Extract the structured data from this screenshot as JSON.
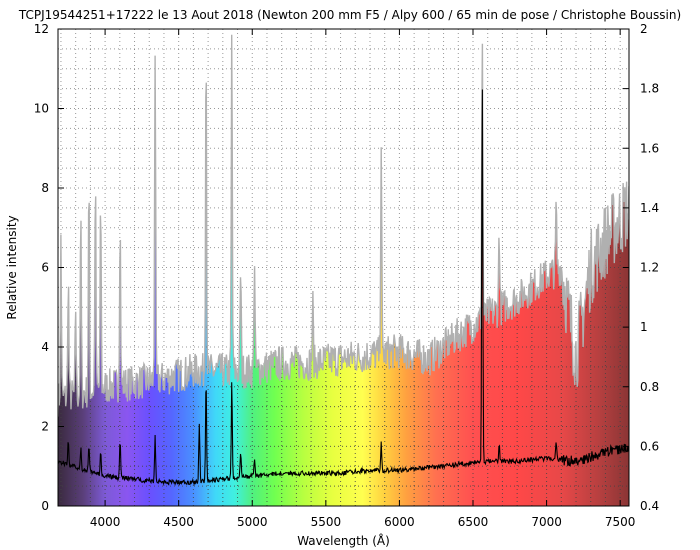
{
  "chart_data": {
    "type": "line",
    "title": "TCPJ19544251+17222  le 13 Aout 2018 (Newton 200 mm F5 / Alpy 600 / 65 min de pose / Christophe Boussin)",
    "xlabel": "Wavelength (Å)",
    "ylabel": "Relative intensity",
    "xlim": [
      3680,
      7560
    ],
    "ylim": [
      0,
      12
    ],
    "y2lim": [
      0.4,
      2.0
    ],
    "grid": true,
    "x_ticks": [
      4000,
      4500,
      5000,
      5500,
      6000,
      6500,
      7000,
      7500
    ],
    "y_ticks": [
      0,
      2,
      4,
      6,
      8,
      10,
      12
    ],
    "y2_ticks": [
      0.4,
      0.6,
      0.8,
      1,
      1.2,
      1.4,
      1.6,
      1.8,
      2
    ],
    "background": "visible-spectrum color gradient",
    "series": [
      {
        "color": "#b0b0b0",
        "axis": "left",
        "continuum": [
          [
            3680,
            2.7
          ],
          [
            3800,
            2.8
          ],
          [
            4000,
            3.0
          ],
          [
            4200,
            3.1
          ],
          [
            4400,
            3.2
          ],
          [
            4600,
            3.4
          ],
          [
            4800,
            3.4
          ],
          [
            5000,
            3.4
          ],
          [
            5200,
            3.6
          ],
          [
            5400,
            3.6
          ],
          [
            5600,
            3.7
          ],
          [
            5800,
            3.8
          ],
          [
            6000,
            3.9
          ],
          [
            6200,
            3.7
          ],
          [
            6400,
            4.3
          ],
          [
            6600,
            4.8
          ],
          [
            6800,
            5.2
          ],
          [
            7000,
            5.8
          ],
          [
            7100,
            6.0
          ],
          [
            7200,
            3.8
          ],
          [
            7300,
            6.0
          ],
          [
            7400,
            6.7
          ],
          [
            7500,
            7.2
          ],
          [
            7560,
            7.5
          ]
        ],
        "peaks": [
          [
            3700,
            6.8
          ],
          [
            3750,
            5.8
          ],
          [
            3800,
            5.0
          ],
          [
            3835,
            7.3
          ],
          [
            3890,
            8.0
          ],
          [
            3934,
            8.2
          ],
          [
            3970,
            7.6
          ],
          [
            4102,
            7.2
          ],
          [
            4340,
            11.5
          ],
          [
            4686,
            12
          ],
          [
            4861,
            12
          ],
          [
            4921,
            6.0
          ],
          [
            5015,
            6.3
          ],
          [
            5411,
            5.1
          ],
          [
            5876,
            9.2
          ],
          [
            6563,
            12
          ],
          [
            6678,
            7.0
          ],
          [
            7065,
            7.5
          ]
        ]
      },
      {
        "color": "#000000",
        "axis": "right",
        "continuum": [
          [
            3680,
            0.55
          ],
          [
            3800,
            0.53
          ],
          [
            4000,
            0.5
          ],
          [
            4200,
            0.49
          ],
          [
            4400,
            0.48
          ],
          [
            4600,
            0.48
          ],
          [
            4800,
            0.49
          ],
          [
            5000,
            0.5
          ],
          [
            5200,
            0.51
          ],
          [
            5400,
            0.51
          ],
          [
            5600,
            0.51
          ],
          [
            5800,
            0.52
          ],
          [
            6000,
            0.52
          ],
          [
            6200,
            0.53
          ],
          [
            6400,
            0.54
          ],
          [
            6600,
            0.55
          ],
          [
            6800,
            0.55
          ],
          [
            7000,
            0.56
          ],
          [
            7200,
            0.55
          ],
          [
            7400,
            0.58
          ],
          [
            7560,
            0.6
          ]
        ],
        "peaks": [
          [
            3750,
            0.62
          ],
          [
            3835,
            0.6
          ],
          [
            3890,
            0.6
          ],
          [
            3970,
            0.58
          ],
          [
            4102,
            0.62
          ],
          [
            4340,
            0.64
          ],
          [
            4640,
            0.68
          ],
          [
            4686,
            0.84
          ],
          [
            4861,
            0.82
          ],
          [
            4921,
            0.58
          ],
          [
            5015,
            0.56
          ],
          [
            5876,
            0.61
          ],
          [
            6563,
            1.85
          ],
          [
            6678,
            0.61
          ],
          [
            7065,
            0.62
          ]
        ]
      }
    ]
  }
}
